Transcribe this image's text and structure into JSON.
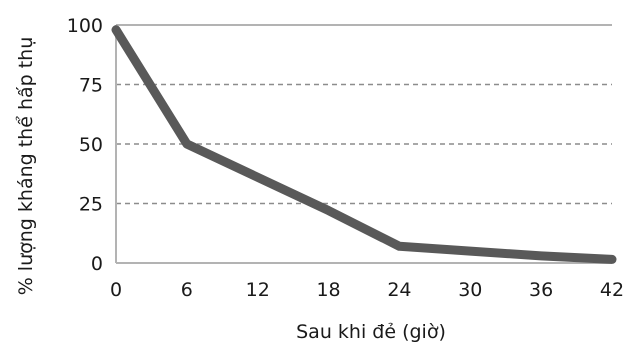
{
  "chart_data": {
    "type": "line",
    "title": "",
    "xlabel": "Sau khi đẻ (giờ)",
    "ylabel": "% lượng kháng thể hấp thụ",
    "x": [
      0,
      6,
      12,
      18,
      24,
      30,
      36,
      42
    ],
    "series": [
      {
        "values": [
          98,
          50,
          36,
          22,
          7,
          5,
          3,
          1.5
        ]
      }
    ],
    "x_ticks": [
      "0",
      "6",
      "12",
      "18",
      "24",
      "30",
      "36",
      "42"
    ],
    "y_ticks": [
      "0",
      "25",
      "50",
      "75",
      "100"
    ],
    "xlim": [
      0,
      42
    ],
    "ylim": [
      0,
      100
    ],
    "grid": "horizontal-dashed",
    "legend": "none",
    "line_color": "#595959",
    "grid_color": "#8c8c8c",
    "axis_color": "#b3b3b3"
  }
}
